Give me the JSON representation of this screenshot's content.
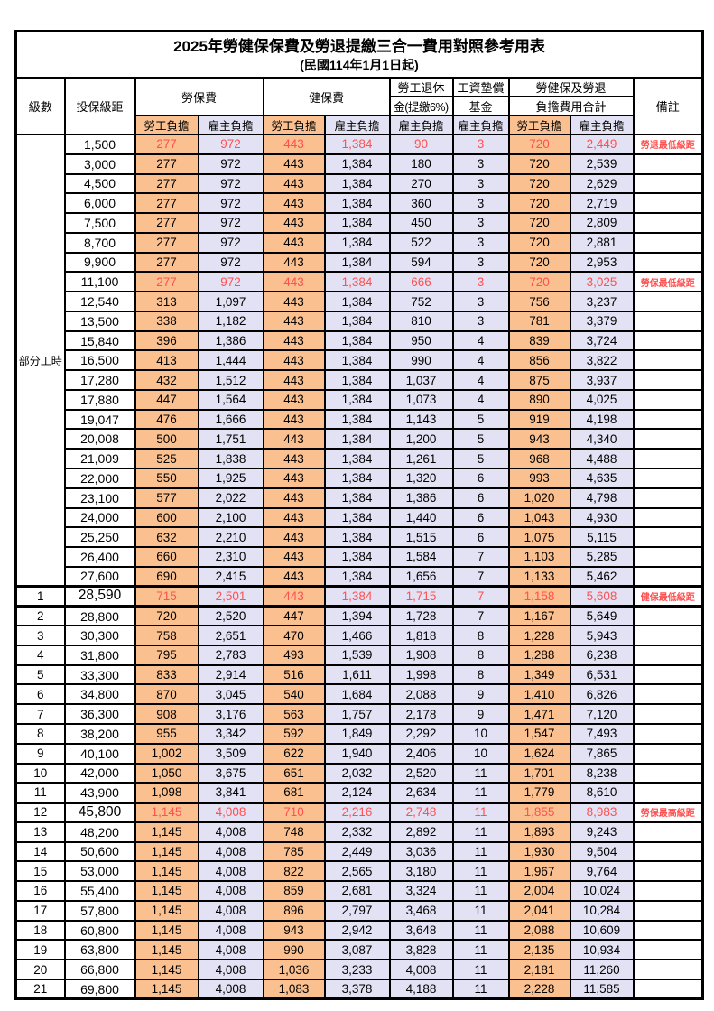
{
  "title": "2025年勞健保保費及勞退提繳三合一費用對照參考用表",
  "subtitle": "(民國114年1月1日起)",
  "colors": {
    "employee_bg": "#FAC08F",
    "employer_bg": "#E3E2F4",
    "highlight_red": "#FF5050",
    "border": "#000000",
    "background": "#FFFFFF"
  },
  "header": {
    "level": "級數",
    "bracket": "投保級距",
    "labor_insurance": "勞保費",
    "health_insurance": "健保費",
    "pension_line1": "勞工退休",
    "pension_line2": "金(提繳6%)",
    "wage_fund_line1": "工資墊償",
    "wage_fund_line2": "基金",
    "total_line1": "勞健保及勞退",
    "total_line2": "負擔費用合計",
    "remark": "備註",
    "employee_share": "勞工負擔",
    "employer_share": "雇主負擔"
  },
  "part_time_label": "部分工時",
  "rows": [
    {
      "section": "part",
      "level": "",
      "bracket": "1,500",
      "values": [
        "277",
        "972",
        "443",
        "1,384",
        "90",
        "3",
        "720",
        "2,449"
      ],
      "remark": "勞退最低級距",
      "red": true,
      "thick": false
    },
    {
      "section": "part",
      "level": "",
      "bracket": "3,000",
      "values": [
        "277",
        "972",
        "443",
        "1,384",
        "180",
        "3",
        "720",
        "2,539"
      ],
      "remark": "",
      "red": false,
      "thick": false
    },
    {
      "section": "part",
      "level": "",
      "bracket": "4,500",
      "values": [
        "277",
        "972",
        "443",
        "1,384",
        "270",
        "3",
        "720",
        "2,629"
      ],
      "remark": "",
      "red": false,
      "thick": false
    },
    {
      "section": "part",
      "level": "",
      "bracket": "6,000",
      "values": [
        "277",
        "972",
        "443",
        "1,384",
        "360",
        "3",
        "720",
        "2,719"
      ],
      "remark": "",
      "red": false,
      "thick": false
    },
    {
      "section": "part",
      "level": "",
      "bracket": "7,500",
      "values": [
        "277",
        "972",
        "443",
        "1,384",
        "450",
        "3",
        "720",
        "2,809"
      ],
      "remark": "",
      "red": false,
      "thick": false
    },
    {
      "section": "part",
      "level": "",
      "bracket": "8,700",
      "values": [
        "277",
        "972",
        "443",
        "1,384",
        "522",
        "3",
        "720",
        "2,881"
      ],
      "remark": "",
      "red": false,
      "thick": false
    },
    {
      "section": "part",
      "level": "",
      "bracket": "9,900",
      "values": [
        "277",
        "972",
        "443",
        "1,384",
        "594",
        "3",
        "720",
        "2,953"
      ],
      "remark": "",
      "red": false,
      "thick": false
    },
    {
      "section": "part",
      "level": "",
      "bracket": "11,100",
      "values": [
        "277",
        "972",
        "443",
        "1,384",
        "666",
        "3",
        "720",
        "3,025"
      ],
      "remark": "勞保最低級距",
      "red": true,
      "thick": false
    },
    {
      "section": "part",
      "level": "",
      "bracket": "12,540",
      "values": [
        "313",
        "1,097",
        "443",
        "1,384",
        "752",
        "3",
        "756",
        "3,237"
      ],
      "remark": "",
      "red": false,
      "thick": false
    },
    {
      "section": "part",
      "level": "",
      "bracket": "13,500",
      "values": [
        "338",
        "1,182",
        "443",
        "1,384",
        "810",
        "3",
        "781",
        "3,379"
      ],
      "remark": "",
      "red": false,
      "thick": false
    },
    {
      "section": "part",
      "level": "",
      "bracket": "15,840",
      "values": [
        "396",
        "1,386",
        "443",
        "1,384",
        "950",
        "4",
        "839",
        "3,724"
      ],
      "remark": "",
      "red": false,
      "thick": false
    },
    {
      "section": "part",
      "level": "",
      "bracket": "16,500",
      "values": [
        "413",
        "1,444",
        "443",
        "1,384",
        "990",
        "4",
        "856",
        "3,822"
      ],
      "remark": "",
      "red": false,
      "thick": false
    },
    {
      "section": "part",
      "level": "",
      "bracket": "17,280",
      "values": [
        "432",
        "1,512",
        "443",
        "1,384",
        "1,037",
        "4",
        "875",
        "3,937"
      ],
      "remark": "",
      "red": false,
      "thick": false
    },
    {
      "section": "part",
      "level": "",
      "bracket": "17,880",
      "values": [
        "447",
        "1,564",
        "443",
        "1,384",
        "1,073",
        "4",
        "890",
        "4,025"
      ],
      "remark": "",
      "red": false,
      "thick": false
    },
    {
      "section": "part",
      "level": "",
      "bracket": "19,047",
      "values": [
        "476",
        "1,666",
        "443",
        "1,384",
        "1,143",
        "5",
        "919",
        "4,198"
      ],
      "remark": "",
      "red": false,
      "thick": false
    },
    {
      "section": "part",
      "level": "",
      "bracket": "20,008",
      "values": [
        "500",
        "1,751",
        "443",
        "1,384",
        "1,200",
        "5",
        "943",
        "4,340"
      ],
      "remark": "",
      "red": false,
      "thick": false
    },
    {
      "section": "part",
      "level": "",
      "bracket": "21,009",
      "values": [
        "525",
        "1,838",
        "443",
        "1,384",
        "1,261",
        "5",
        "968",
        "4,488"
      ],
      "remark": "",
      "red": false,
      "thick": false
    },
    {
      "section": "part",
      "level": "",
      "bracket": "22,000",
      "values": [
        "550",
        "1,925",
        "443",
        "1,384",
        "1,320",
        "6",
        "993",
        "4,635"
      ],
      "remark": "",
      "red": false,
      "thick": false
    },
    {
      "section": "part",
      "level": "",
      "bracket": "23,100",
      "values": [
        "577",
        "2,022",
        "443",
        "1,384",
        "1,386",
        "6",
        "1,020",
        "4,798"
      ],
      "remark": "",
      "red": false,
      "thick": false
    },
    {
      "section": "part",
      "level": "",
      "bracket": "24,000",
      "values": [
        "600",
        "2,100",
        "443",
        "1,384",
        "1,440",
        "6",
        "1,043",
        "4,930"
      ],
      "remark": "",
      "red": false,
      "thick": false
    },
    {
      "section": "part",
      "level": "",
      "bracket": "25,250",
      "values": [
        "632",
        "2,210",
        "443",
        "1,384",
        "1,515",
        "6",
        "1,075",
        "5,115"
      ],
      "remark": "",
      "red": false,
      "thick": false
    },
    {
      "section": "part",
      "level": "",
      "bracket": "26,400",
      "values": [
        "660",
        "2,310",
        "443",
        "1,384",
        "1,584",
        "7",
        "1,103",
        "5,285"
      ],
      "remark": "",
      "red": false,
      "thick": false
    },
    {
      "section": "part",
      "level": "",
      "bracket": "27,600",
      "values": [
        "690",
        "2,415",
        "443",
        "1,384",
        "1,656",
        "7",
        "1,133",
        "5,462"
      ],
      "remark": "",
      "red": false,
      "thick": false
    },
    {
      "section": "level",
      "level": "1",
      "bracket": "28,590",
      "values": [
        "715",
        "2,501",
        "443",
        "1,384",
        "1,715",
        "7",
        "1,158",
        "5,608"
      ],
      "remark": "健保最低級距",
      "red": true,
      "thick": true
    },
    {
      "section": "level",
      "level": "2",
      "bracket": "28,800",
      "values": [
        "720",
        "2,520",
        "447",
        "1,394",
        "1,728",
        "7",
        "1,167",
        "5,649"
      ],
      "remark": "",
      "red": false,
      "thick": false
    },
    {
      "section": "level",
      "level": "3",
      "bracket": "30,300",
      "values": [
        "758",
        "2,651",
        "470",
        "1,466",
        "1,818",
        "8",
        "1,228",
        "5,943"
      ],
      "remark": "",
      "red": false,
      "thick": false
    },
    {
      "section": "level",
      "level": "4",
      "bracket": "31,800",
      "values": [
        "795",
        "2,783",
        "493",
        "1,539",
        "1,908",
        "8",
        "1,288",
        "6,238"
      ],
      "remark": "",
      "red": false,
      "thick": false
    },
    {
      "section": "level",
      "level": "5",
      "bracket": "33,300",
      "values": [
        "833",
        "2,914",
        "516",
        "1,611",
        "1,998",
        "8",
        "1,349",
        "6,531"
      ],
      "remark": "",
      "red": false,
      "thick": false
    },
    {
      "section": "level",
      "level": "6",
      "bracket": "34,800",
      "values": [
        "870",
        "3,045",
        "540",
        "1,684",
        "2,088",
        "9",
        "1,410",
        "6,826"
      ],
      "remark": "",
      "red": false,
      "thick": false
    },
    {
      "section": "level",
      "level": "7",
      "bracket": "36,300",
      "values": [
        "908",
        "3,176",
        "563",
        "1,757",
        "2,178",
        "9",
        "1,471",
        "7,120"
      ],
      "remark": "",
      "red": false,
      "thick": false
    },
    {
      "section": "level",
      "level": "8",
      "bracket": "38,200",
      "values": [
        "955",
        "3,342",
        "592",
        "1,849",
        "2,292",
        "10",
        "1,547",
        "7,493"
      ],
      "remark": "",
      "red": false,
      "thick": false
    },
    {
      "section": "level",
      "level": "9",
      "bracket": "40,100",
      "values": [
        "1,002",
        "3,509",
        "622",
        "1,940",
        "2,406",
        "10",
        "1,624",
        "7,865"
      ],
      "remark": "",
      "red": false,
      "thick": false
    },
    {
      "section": "level",
      "level": "10",
      "bracket": "42,000",
      "values": [
        "1,050",
        "3,675",
        "651",
        "2,032",
        "2,520",
        "11",
        "1,701",
        "8,238"
      ],
      "remark": "",
      "red": false,
      "thick": false
    },
    {
      "section": "level",
      "level": "11",
      "bracket": "43,900",
      "values": [
        "1,098",
        "3,841",
        "681",
        "2,124",
        "2,634",
        "11",
        "1,779",
        "8,610"
      ],
      "remark": "",
      "red": false,
      "thick": false
    },
    {
      "section": "level",
      "level": "12",
      "bracket": "45,800",
      "values": [
        "1,145",
        "4,008",
        "710",
        "2,216",
        "2,748",
        "11",
        "1,855",
        "8,983"
      ],
      "remark": "勞保最高級距",
      "red": true,
      "thick": true
    },
    {
      "section": "level",
      "level": "13",
      "bracket": "48,200",
      "values": [
        "1,145",
        "4,008",
        "748",
        "2,332",
        "2,892",
        "11",
        "1,893",
        "9,243"
      ],
      "remark": "",
      "red": false,
      "thick": false
    },
    {
      "section": "level",
      "level": "14",
      "bracket": "50,600",
      "values": [
        "1,145",
        "4,008",
        "785",
        "2,449",
        "3,036",
        "11",
        "1,930",
        "9,504"
      ],
      "remark": "",
      "red": false,
      "thick": false
    },
    {
      "section": "level",
      "level": "15",
      "bracket": "53,000",
      "values": [
        "1,145",
        "4,008",
        "822",
        "2,565",
        "3,180",
        "11",
        "1,967",
        "9,764"
      ],
      "remark": "",
      "red": false,
      "thick": false
    },
    {
      "section": "level",
      "level": "16",
      "bracket": "55,400",
      "values": [
        "1,145",
        "4,008",
        "859",
        "2,681",
        "3,324",
        "11",
        "2,004",
        "10,024"
      ],
      "remark": "",
      "red": false,
      "thick": false
    },
    {
      "section": "level",
      "level": "17",
      "bracket": "57,800",
      "values": [
        "1,145",
        "4,008",
        "896",
        "2,797",
        "3,468",
        "11",
        "2,041",
        "10,284"
      ],
      "remark": "",
      "red": false,
      "thick": false
    },
    {
      "section": "level",
      "level": "18",
      "bracket": "60,800",
      "values": [
        "1,145",
        "4,008",
        "943",
        "2,942",
        "3,648",
        "11",
        "2,088",
        "10,609"
      ],
      "remark": "",
      "red": false,
      "thick": false
    },
    {
      "section": "level",
      "level": "19",
      "bracket": "63,800",
      "values": [
        "1,145",
        "4,008",
        "990",
        "3,087",
        "3,828",
        "11",
        "2,135",
        "10,934"
      ],
      "remark": "",
      "red": false,
      "thick": false
    },
    {
      "section": "level",
      "level": "20",
      "bracket": "66,800",
      "values": [
        "1,145",
        "4,008",
        "1,036",
        "3,233",
        "4,008",
        "11",
        "2,181",
        "11,260"
      ],
      "remark": "",
      "red": false,
      "thick": false
    },
    {
      "section": "level",
      "level": "21",
      "bracket": "69,800",
      "values": [
        "1,145",
        "4,008",
        "1,083",
        "3,378",
        "4,188",
        "11",
        "2,228",
        "11,585"
      ],
      "remark": "",
      "red": false,
      "thick": false
    }
  ]
}
